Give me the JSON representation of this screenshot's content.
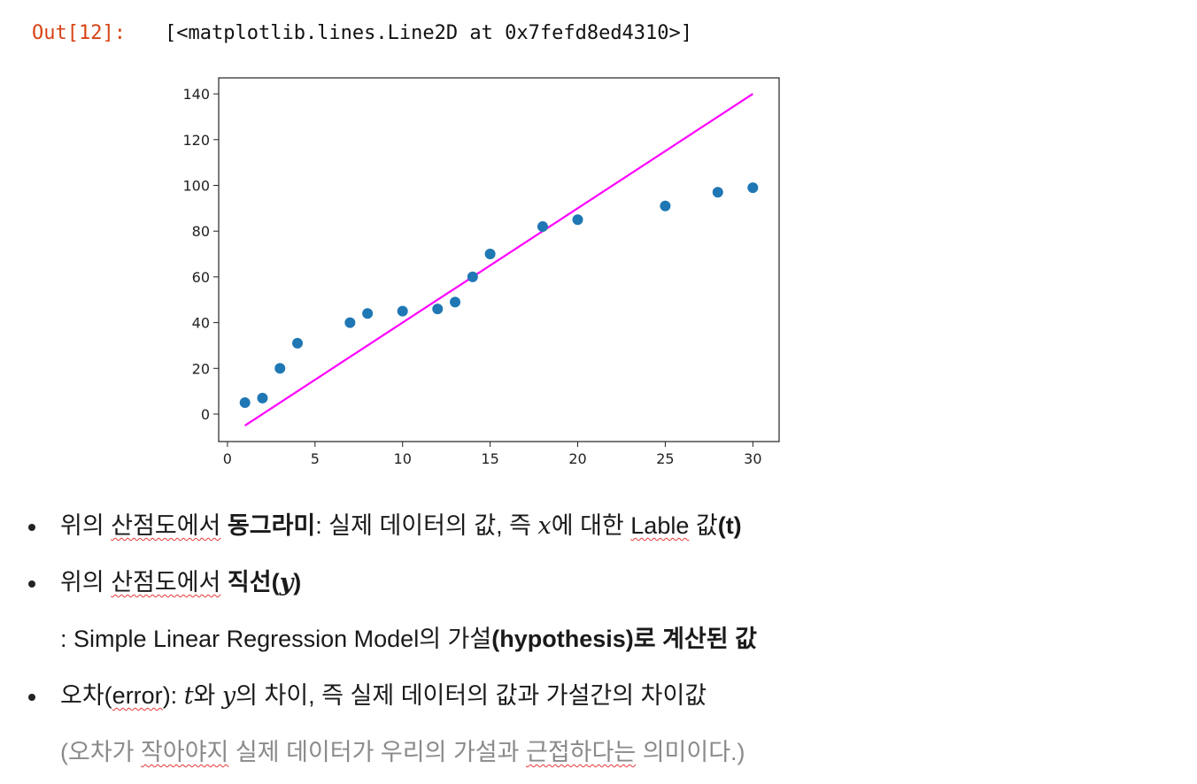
{
  "output": {
    "prompt": "Out[12]:",
    "text": "[<matplotlib.lines.Line2D at 0x7fefd8ed4310>]"
  },
  "chart_data": {
    "type": "scatter",
    "x": [
      1,
      2,
      3,
      4,
      7,
      8,
      10,
      12,
      13,
      14,
      15,
      18,
      20,
      25,
      28,
      30
    ],
    "values": [
      5,
      7,
      20,
      31,
      40,
      44,
      45,
      46,
      49,
      60,
      70,
      82,
      85,
      91,
      97,
      99
    ],
    "line": {
      "x": [
        1,
        30
      ],
      "y": [
        -5,
        140
      ],
      "color": "#ff00ff"
    },
    "marker_color": "#1f77b4",
    "xlim": [
      -0.5,
      31.5
    ],
    "ylim": [
      -12,
      147
    ],
    "xticks": [
      "0",
      "5",
      "10",
      "15",
      "20",
      "25",
      "30"
    ],
    "yticks": [
      "0",
      "20",
      "40",
      "60",
      "80",
      "100",
      "120",
      "140"
    ],
    "title": "",
    "xlabel": "",
    "ylabel": "",
    "grid": false
  },
  "bullets": {
    "b1": {
      "p1": "위의 ",
      "p2": "산점도에서",
      "p3": " ",
      "p4": "동그라미",
      "p5": ": 실제 데이터의 값, 즉 ",
      "x": "x",
      "p6": "에 대한 ",
      "p7": "Lable",
      "p8": " 값",
      "p9": "(t)"
    },
    "b2": {
      "p1": "위의 ",
      "p2": "산점도에서",
      "p3": " ",
      "p4": "직선(",
      "y": "y",
      "p5": ")"
    },
    "b2_cont": {
      "p1": ": Simple Linear Regression Model의 가설",
      "p2": "(hypothesis)로 계산된 값"
    },
    "b3": {
      "p1": "오차(",
      "p2": "error",
      "p3": "): ",
      "t": "t",
      "p4": "와 ",
      "y": "y",
      "p5": "의 차이, 즉 실제 데이터의 값과 가설간의 차이값"
    },
    "b3_cont": {
      "p1": "(오차가 ",
      "p2": "작아야지",
      "p3": " 실제 데이터가 우리의 가설과 ",
      "p4": "근접하다는",
      "p5": " 의미이다.)"
    }
  }
}
